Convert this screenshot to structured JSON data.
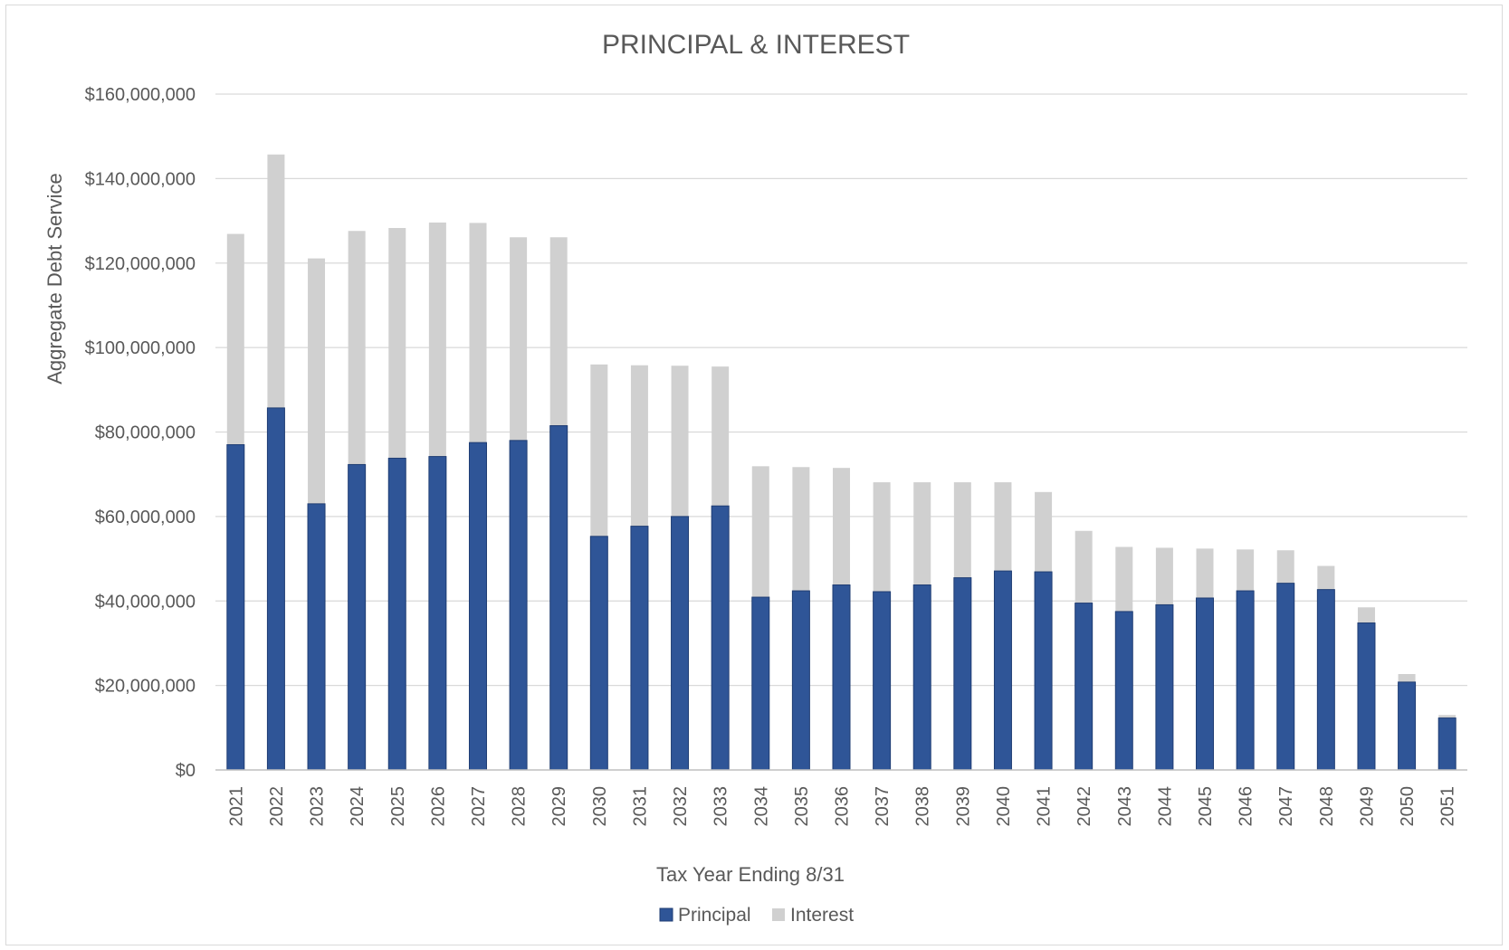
{
  "chart_data": {
    "type": "bar",
    "stacked": true,
    "title": "PRINCIPAL & INTEREST",
    "xlabel": "Tax Year Ending 8/31",
    "ylabel": "Aggregate Debt Service",
    "ylim": [
      0,
      160000000
    ],
    "yticks": [
      0,
      20000000,
      40000000,
      60000000,
      80000000,
      100000000,
      120000000,
      140000000,
      160000000
    ],
    "ytick_labels": [
      "$0",
      "$20,000,000",
      "$40,000,000",
      "$60,000,000",
      "$80,000,000",
      "$100,000,000",
      "$120,000,000",
      "$140,000,000",
      "$160,000,000"
    ],
    "grid": true,
    "legend_position": "bottom",
    "categories": [
      "2021",
      "2022",
      "2023",
      "2024",
      "2025",
      "2026",
      "2027",
      "2028",
      "2029",
      "2030",
      "2031",
      "2032",
      "2033",
      "2034",
      "2035",
      "2036",
      "2037",
      "2038",
      "2039",
      "2040",
      "2041",
      "2042",
      "2043",
      "2044",
      "2045",
      "2046",
      "2047",
      "2048",
      "2049",
      "2050",
      "2051"
    ],
    "series": [
      {
        "name": "Principal",
        "color": "#2f5597",
        "values": [
          77000000,
          85700000,
          63000000,
          72300000,
          73800000,
          74200000,
          77500000,
          78000000,
          81500000,
          55300000,
          57700000,
          60000000,
          62500000,
          40900000,
          42400000,
          43800000,
          42200000,
          43800000,
          45500000,
          47100000,
          46900000,
          39500000,
          37500000,
          39100000,
          40700000,
          42400000,
          44200000,
          42700000,
          34800000,
          20800000,
          12300000
        ]
      },
      {
        "name": "Interest",
        "color": "#d0d0d0",
        "values": [
          49900000,
          60000000,
          58100000,
          55300000,
          54500000,
          55400000,
          52000000,
          48100000,
          44600000,
          40700000,
          38100000,
          35700000,
          33000000,
          31000000,
          29300000,
          27700000,
          25900000,
          24300000,
          22600000,
          21000000,
          18900000,
          17100000,
          15300000,
          13500000,
          11700000,
          9800000,
          7800000,
          5600000,
          3700000,
          1900000,
          700000
        ]
      }
    ]
  }
}
